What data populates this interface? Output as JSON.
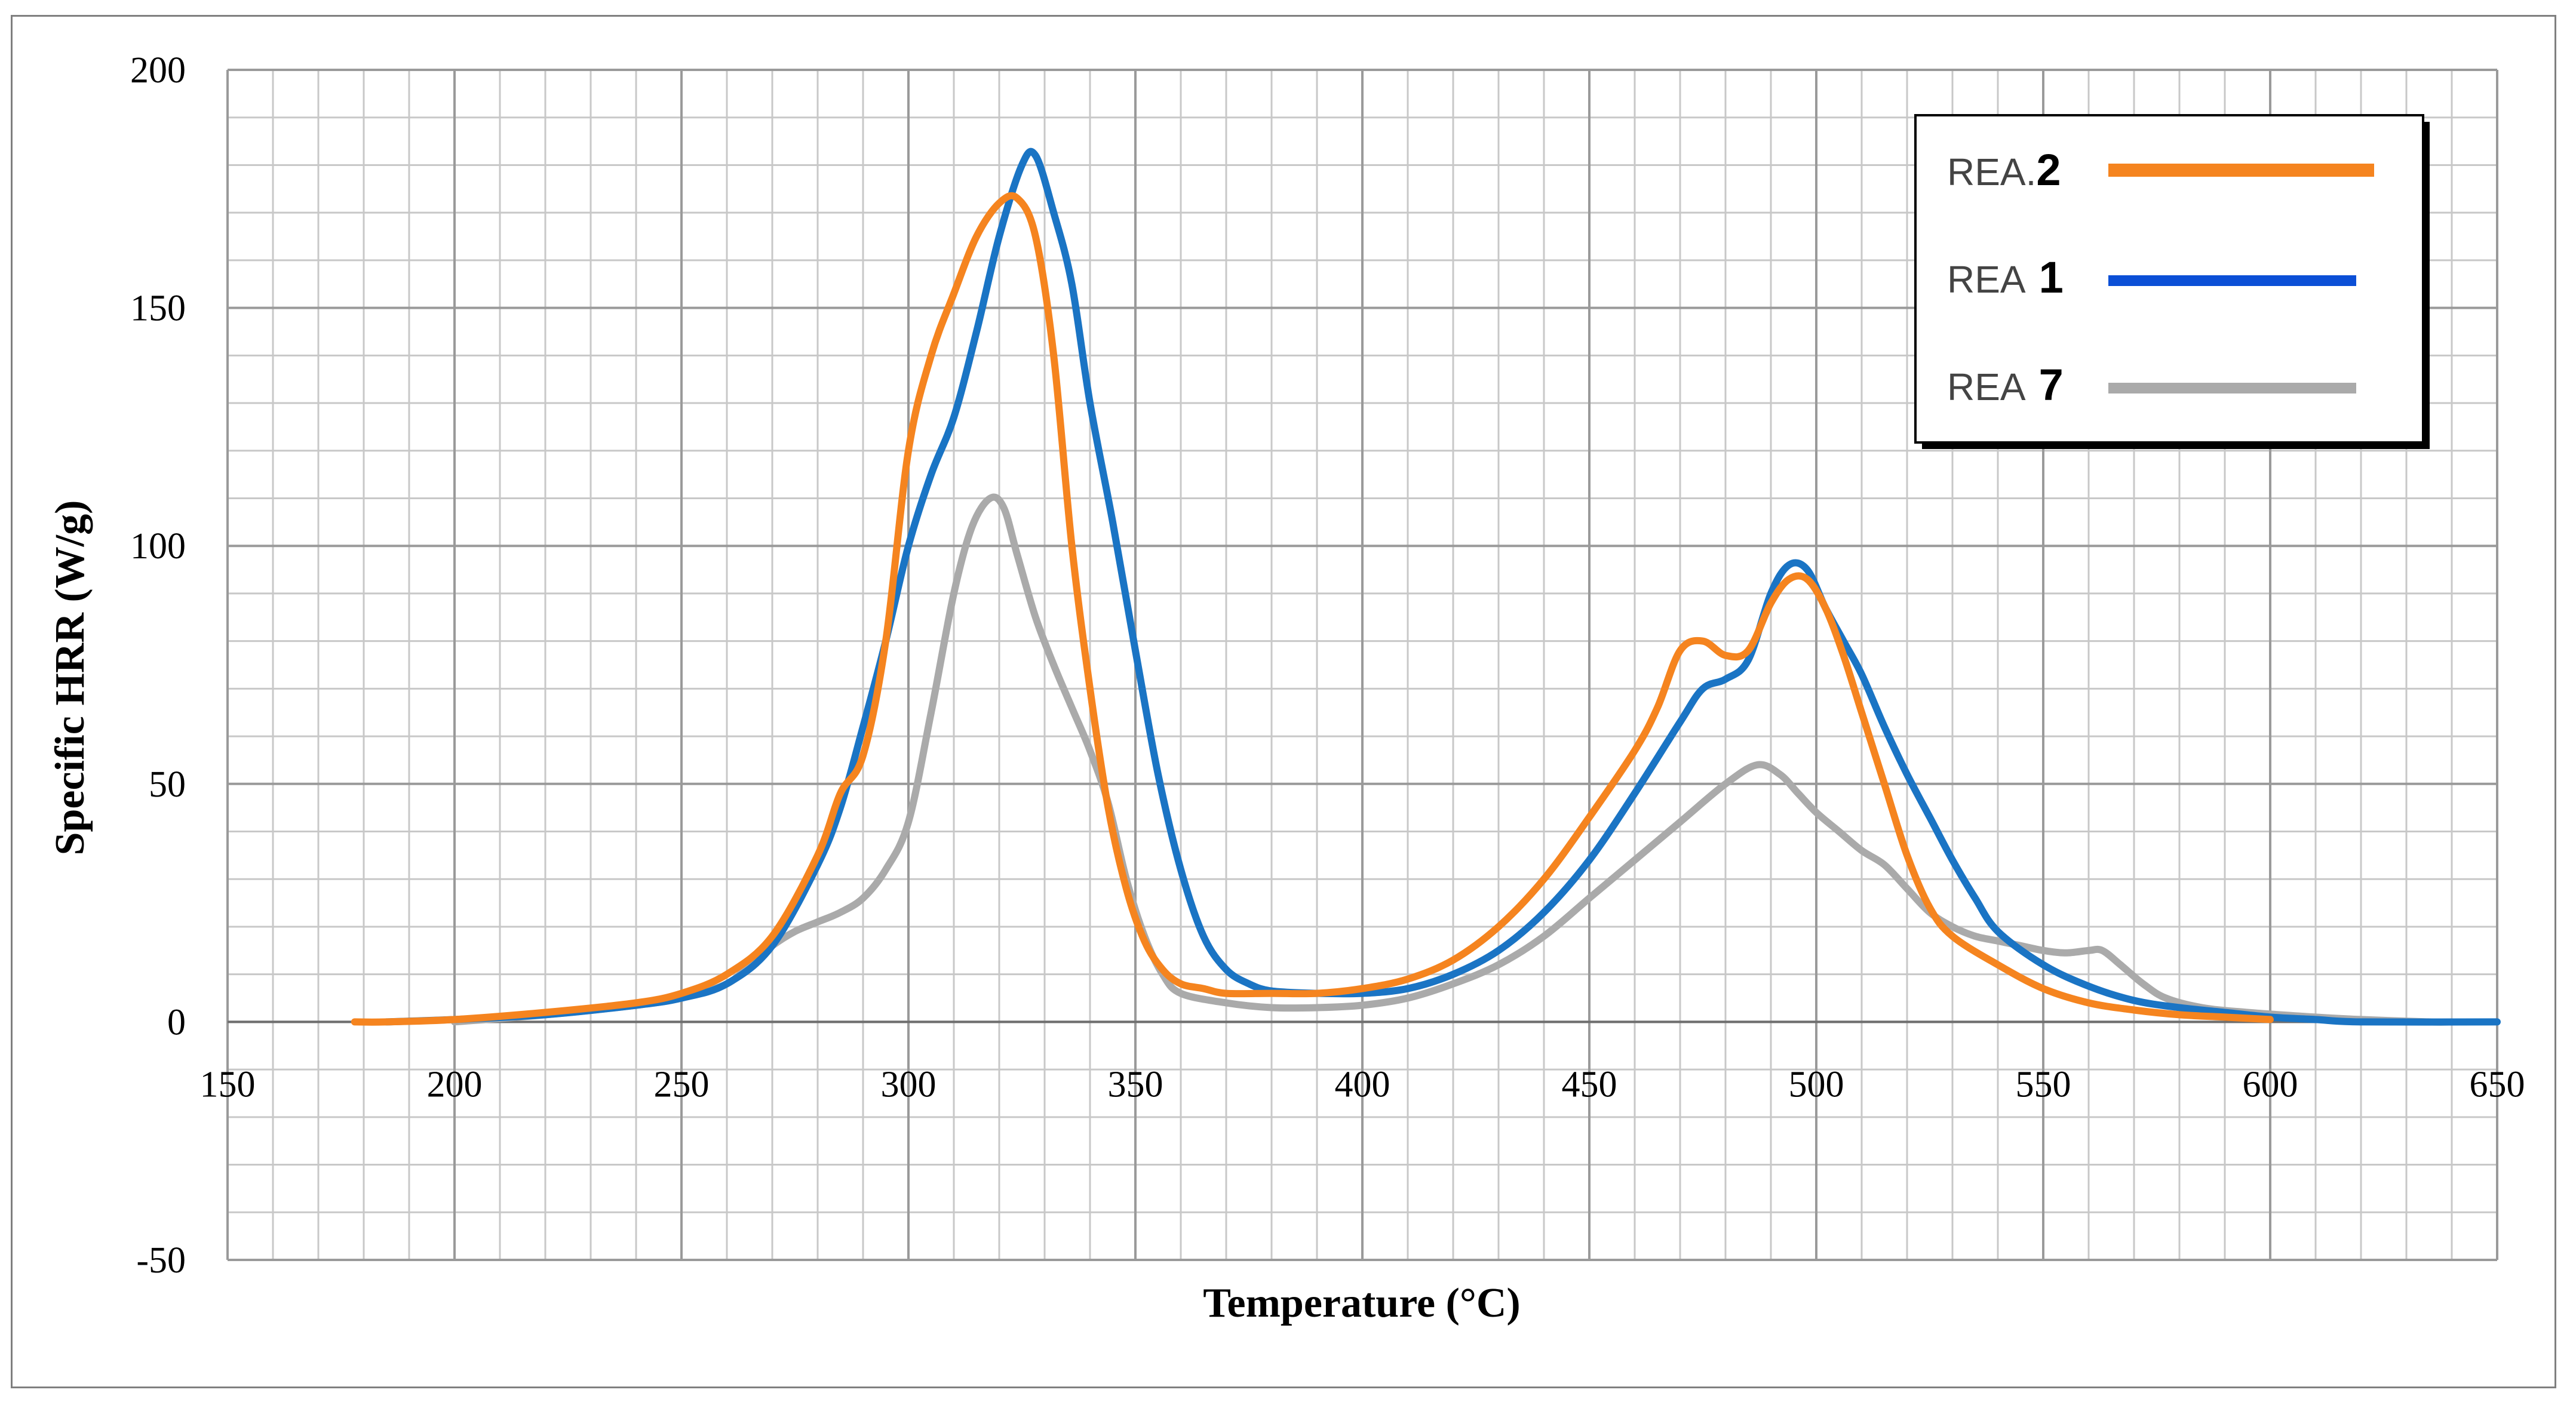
{
  "chart_data": {
    "type": "line",
    "title": "",
    "xlabel": "Temperature (°C)",
    "ylabel": "Specific HRR (W/g)",
    "xlim": [
      150,
      650
    ],
    "ylim": [
      -50,
      200
    ],
    "x_major_step": 50,
    "x_minor_step": 10,
    "y_major_step": 50,
    "y_minor_step": 10,
    "grid": true,
    "legend_position": "top-right",
    "x_tick_labels": [
      "150",
      "200",
      "250",
      "300",
      "350",
      "400",
      "450",
      "500",
      "550",
      "600",
      "650"
    ],
    "y_tick_labels": [
      "-50",
      "0",
      "50",
      "100",
      "150",
      "200"
    ],
    "series": [
      {
        "name": "REA 2",
        "legend_prefix": "REA.",
        "legend_number": "2",
        "color": "#f5841f",
        "points": [
          [
            178,
            0
          ],
          [
            185,
            0
          ],
          [
            200,
            0.5
          ],
          [
            220,
            2
          ],
          [
            240,
            4
          ],
          [
            250,
            6
          ],
          [
            260,
            10
          ],
          [
            270,
            18
          ],
          [
            280,
            35
          ],
          [
            285,
            48
          ],
          [
            290,
            56
          ],
          [
            295,
            80
          ],
          [
            300,
            120
          ],
          [
            305,
            140
          ],
          [
            310,
            153
          ],
          [
            315,
            165
          ],
          [
            320,
            172
          ],
          [
            324,
            173
          ],
          [
            328,
            165
          ],
          [
            332,
            140
          ],
          [
            336,
            100
          ],
          [
            340,
            70
          ],
          [
            344,
            45
          ],
          [
            348,
            28
          ],
          [
            352,
            17
          ],
          [
            356,
            11
          ],
          [
            360,
            8
          ],
          [
            365,
            7
          ],
          [
            370,
            6
          ],
          [
            380,
            6
          ],
          [
            390,
            6
          ],
          [
            400,
            7
          ],
          [
            410,
            9
          ],
          [
            420,
            13
          ],
          [
            430,
            20
          ],
          [
            440,
            30
          ],
          [
            450,
            43
          ],
          [
            460,
            57
          ],
          [
            465,
            66
          ],
          [
            470,
            78
          ],
          [
            475,
            80
          ],
          [
            480,
            77
          ],
          [
            485,
            78
          ],
          [
            490,
            88
          ],
          [
            494,
            93
          ],
          [
            498,
            93
          ],
          [
            502,
            87
          ],
          [
            506,
            77
          ],
          [
            510,
            65
          ],
          [
            515,
            50
          ],
          [
            520,
            35
          ],
          [
            525,
            24
          ],
          [
            530,
            18
          ],
          [
            540,
            12
          ],
          [
            550,
            7
          ],
          [
            560,
            4
          ],
          [
            570,
            2.5
          ],
          [
            580,
            1.5
          ],
          [
            590,
            1
          ],
          [
            600,
            0.5
          ]
        ]
      },
      {
        "name": "REA 1",
        "legend_prefix": "REA",
        "legend_number": "1",
        "color": "#1a74c4",
        "points": [
          [
            185,
            0
          ],
          [
            200,
            0.5
          ],
          [
            220,
            1.5
          ],
          [
            240,
            3.5
          ],
          [
            250,
            5
          ],
          [
            260,
            8
          ],
          [
            270,
            16
          ],
          [
            280,
            33
          ],
          [
            285,
            45
          ],
          [
            290,
            62
          ],
          [
            295,
            80
          ],
          [
            300,
            100
          ],
          [
            305,
            115
          ],
          [
            310,
            127
          ],
          [
            315,
            145
          ],
          [
            320,
            165
          ],
          [
            325,
            180
          ],
          [
            328,
            182
          ],
          [
            332,
            170
          ],
          [
            336,
            155
          ],
          [
            340,
            130
          ],
          [
            345,
            105
          ],
          [
            350,
            78
          ],
          [
            355,
            52
          ],
          [
            360,
            32
          ],
          [
            365,
            18
          ],
          [
            370,
            11
          ],
          [
            375,
            8
          ],
          [
            380,
            6.5
          ],
          [
            390,
            6
          ],
          [
            400,
            6
          ],
          [
            410,
            7
          ],
          [
            420,
            10
          ],
          [
            430,
            15
          ],
          [
            440,
            23
          ],
          [
            450,
            34
          ],
          [
            460,
            48
          ],
          [
            470,
            63
          ],
          [
            475,
            70
          ],
          [
            480,
            72
          ],
          [
            485,
            76
          ],
          [
            490,
            90
          ],
          [
            494,
            96
          ],
          [
            498,
            95
          ],
          [
            502,
            87
          ],
          [
            506,
            80
          ],
          [
            510,
            73
          ],
          [
            515,
            62
          ],
          [
            520,
            52
          ],
          [
            525,
            43
          ],
          [
            530,
            34
          ],
          [
            535,
            26
          ],
          [
            540,
            19
          ],
          [
            550,
            12
          ],
          [
            560,
            7.5
          ],
          [
            570,
            4.5
          ],
          [
            580,
            3
          ],
          [
            590,
            2
          ],
          [
            600,
            1
          ],
          [
            610,
            0.5
          ],
          [
            620,
            0
          ],
          [
            650,
            0
          ]
        ]
      },
      {
        "name": "REA 7",
        "legend_prefix": "REA",
        "legend_number": "7",
        "color": "#aaaaaa",
        "points": [
          [
            200,
            0
          ],
          [
            220,
            1.5
          ],
          [
            240,
            3.5
          ],
          [
            250,
            5
          ],
          [
            260,
            8
          ],
          [
            265,
            12
          ],
          [
            270,
            16
          ],
          [
            275,
            19
          ],
          [
            280,
            21
          ],
          [
            285,
            23
          ],
          [
            290,
            26
          ],
          [
            295,
            32
          ],
          [
            300,
            42
          ],
          [
            305,
            65
          ],
          [
            310,
            90
          ],
          [
            314,
            104
          ],
          [
            318,
            110
          ],
          [
            321,
            108
          ],
          [
            324,
            98
          ],
          [
            328,
            85
          ],
          [
            332,
            75
          ],
          [
            336,
            66
          ],
          [
            340,
            57
          ],
          [
            344,
            46
          ],
          [
            348,
            30
          ],
          [
            352,
            18
          ],
          [
            356,
            10
          ],
          [
            360,
            6
          ],
          [
            370,
            4
          ],
          [
            380,
            3
          ],
          [
            390,
            3
          ],
          [
            400,
            3.5
          ],
          [
            410,
            5
          ],
          [
            420,
            8
          ],
          [
            430,
            12
          ],
          [
            440,
            18
          ],
          [
            450,
            26
          ],
          [
            460,
            34
          ],
          [
            470,
            42
          ],
          [
            480,
            50
          ],
          [
            487,
            54
          ],
          [
            492,
            52
          ],
          [
            496,
            48
          ],
          [
            500,
            44
          ],
          [
            505,
            40
          ],
          [
            510,
            36
          ],
          [
            515,
            33
          ],
          [
            520,
            28
          ],
          [
            525,
            23
          ],
          [
            530,
            20
          ],
          [
            535,
            18
          ],
          [
            540,
            17
          ],
          [
            545,
            16
          ],
          [
            550,
            15
          ],
          [
            555,
            14.5
          ],
          [
            560,
            15
          ],
          [
            563,
            15
          ],
          [
            567,
            12
          ],
          [
            572,
            8
          ],
          [
            577,
            5
          ],
          [
            585,
            3
          ],
          [
            595,
            2
          ],
          [
            610,
            1
          ],
          [
            620,
            0.5
          ],
          [
            635,
            0
          ],
          [
            640,
            0
          ]
        ]
      }
    ]
  }
}
